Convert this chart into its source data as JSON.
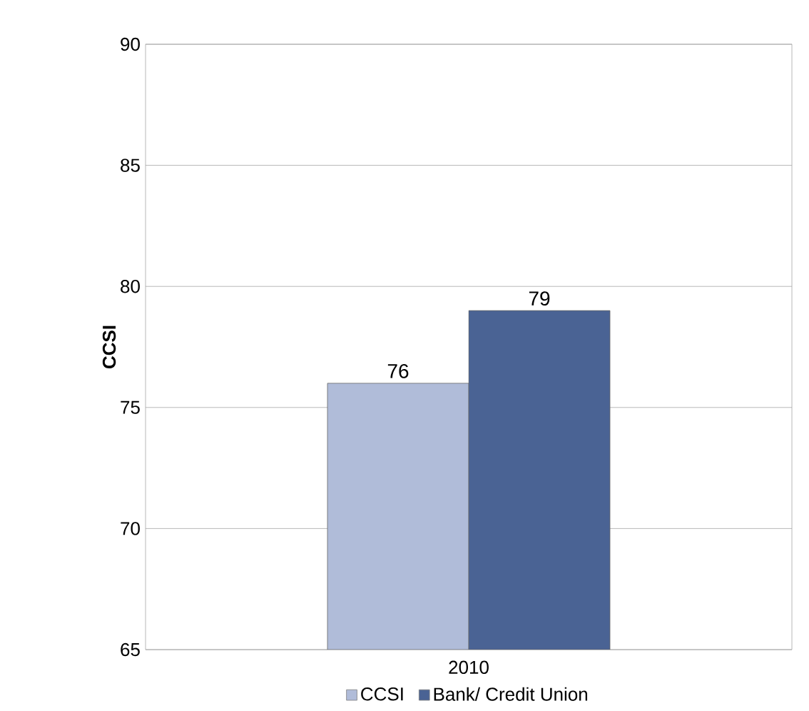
{
  "chart_data": {
    "type": "bar",
    "ylabel": "CCSI",
    "categories": [
      "2010"
    ],
    "series": [
      {
        "name": "CCSI",
        "color": "#b0bcd9",
        "values": [
          76
        ]
      },
      {
        "name": "Bank/ Credit Union",
        "color": "#4a6394",
        "values": [
          79
        ]
      }
    ],
    "ylim": [
      65,
      90
    ],
    "yticks": [
      65,
      70,
      75,
      80,
      85,
      90
    ],
    "grid": "y",
    "legend": "bottom",
    "data_labels": true
  }
}
